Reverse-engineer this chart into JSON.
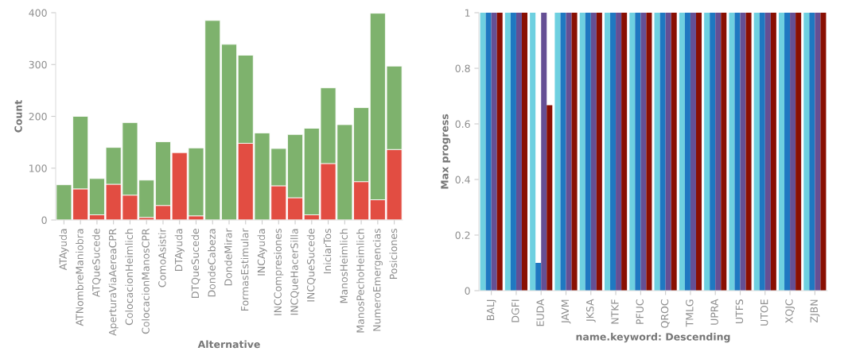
{
  "chart_data": [
    {
      "type": "bar",
      "stacked": true,
      "xlabel": "Alternative",
      "ylabel": "Count",
      "categories": [
        "ATAyuda",
        "ATNombreManiobra",
        "ATQueSucede",
        "AperturaViaAereaCPR",
        "ColocacionHeimlich",
        "ColocacionManosCPR",
        "ComoAsistir",
        "DTAyuda",
        "DTQueSucede",
        "DondeCabeza",
        "DondeMirar",
        "FormasEstimular",
        "INCAyuda",
        "INCCompresiones",
        "INCQueHacerSilla",
        "INCQueSucede",
        "IniciarTos",
        "ManosHeimlich",
        "ManosPechoHeimlich",
        "NumeroEmergencias",
        "Posiciones"
      ],
      "series": [
        {
          "color": "#e24d42",
          "values": [
            0,
            60,
            10,
            69,
            48,
            5,
            28,
            130,
            8,
            0,
            0,
            148,
            0,
            66,
            43,
            10,
            109,
            0,
            74,
            39,
            136
          ]
        },
        {
          "color": "#7eb26d",
          "values": [
            68,
            140,
            70,
            71,
            140,
            72,
            123,
            0,
            131,
            385,
            339,
            170,
            168,
            72,
            122,
            167,
            146,
            184,
            143,
            360,
            161
          ]
        }
      ],
      "ylim": [
        0,
        400
      ],
      "yticks": [
        0,
        100,
        200,
        300,
        400
      ],
      "grid": false
    },
    {
      "type": "bar",
      "xlabel": "name.keyword: Descending",
      "ylabel": "Max progress",
      "categories": [
        "BALJ",
        "DGFI",
        "EUDA",
        "JAVM",
        "JKSA",
        "NTKF",
        "PFUC",
        "QROC",
        "TMLG",
        "UPRA",
        "UTFS",
        "UTOE",
        "XQJC",
        "ZJBN"
      ],
      "series": [
        {
          "color": "#6ed0e0",
          "values": [
            1,
            1,
            1,
            1,
            1,
            1,
            1,
            1,
            1,
            1,
            1,
            1,
            1,
            1
          ]
        },
        {
          "color": "#1f78c1",
          "values": [
            1,
            1,
            0.1,
            1,
            1,
            1,
            1,
            1,
            1,
            1,
            1,
            1,
            1,
            1
          ]
        },
        {
          "color": "#654f94",
          "values": [
            1,
            1,
            1,
            1,
            1,
            1,
            1,
            1,
            1,
            1,
            1,
            1,
            1,
            1
          ]
        },
        {
          "color": "#890f02",
          "values": [
            1,
            1,
            0.667,
            1,
            1,
            1,
            1,
            1,
            1,
            1,
            1,
            1,
            1,
            1
          ]
        }
      ],
      "ylim": [
        0,
        1
      ],
      "yticks": [
        0,
        0.2,
        0.4,
        0.6,
        0.8,
        1
      ],
      "grid": false
    }
  ]
}
